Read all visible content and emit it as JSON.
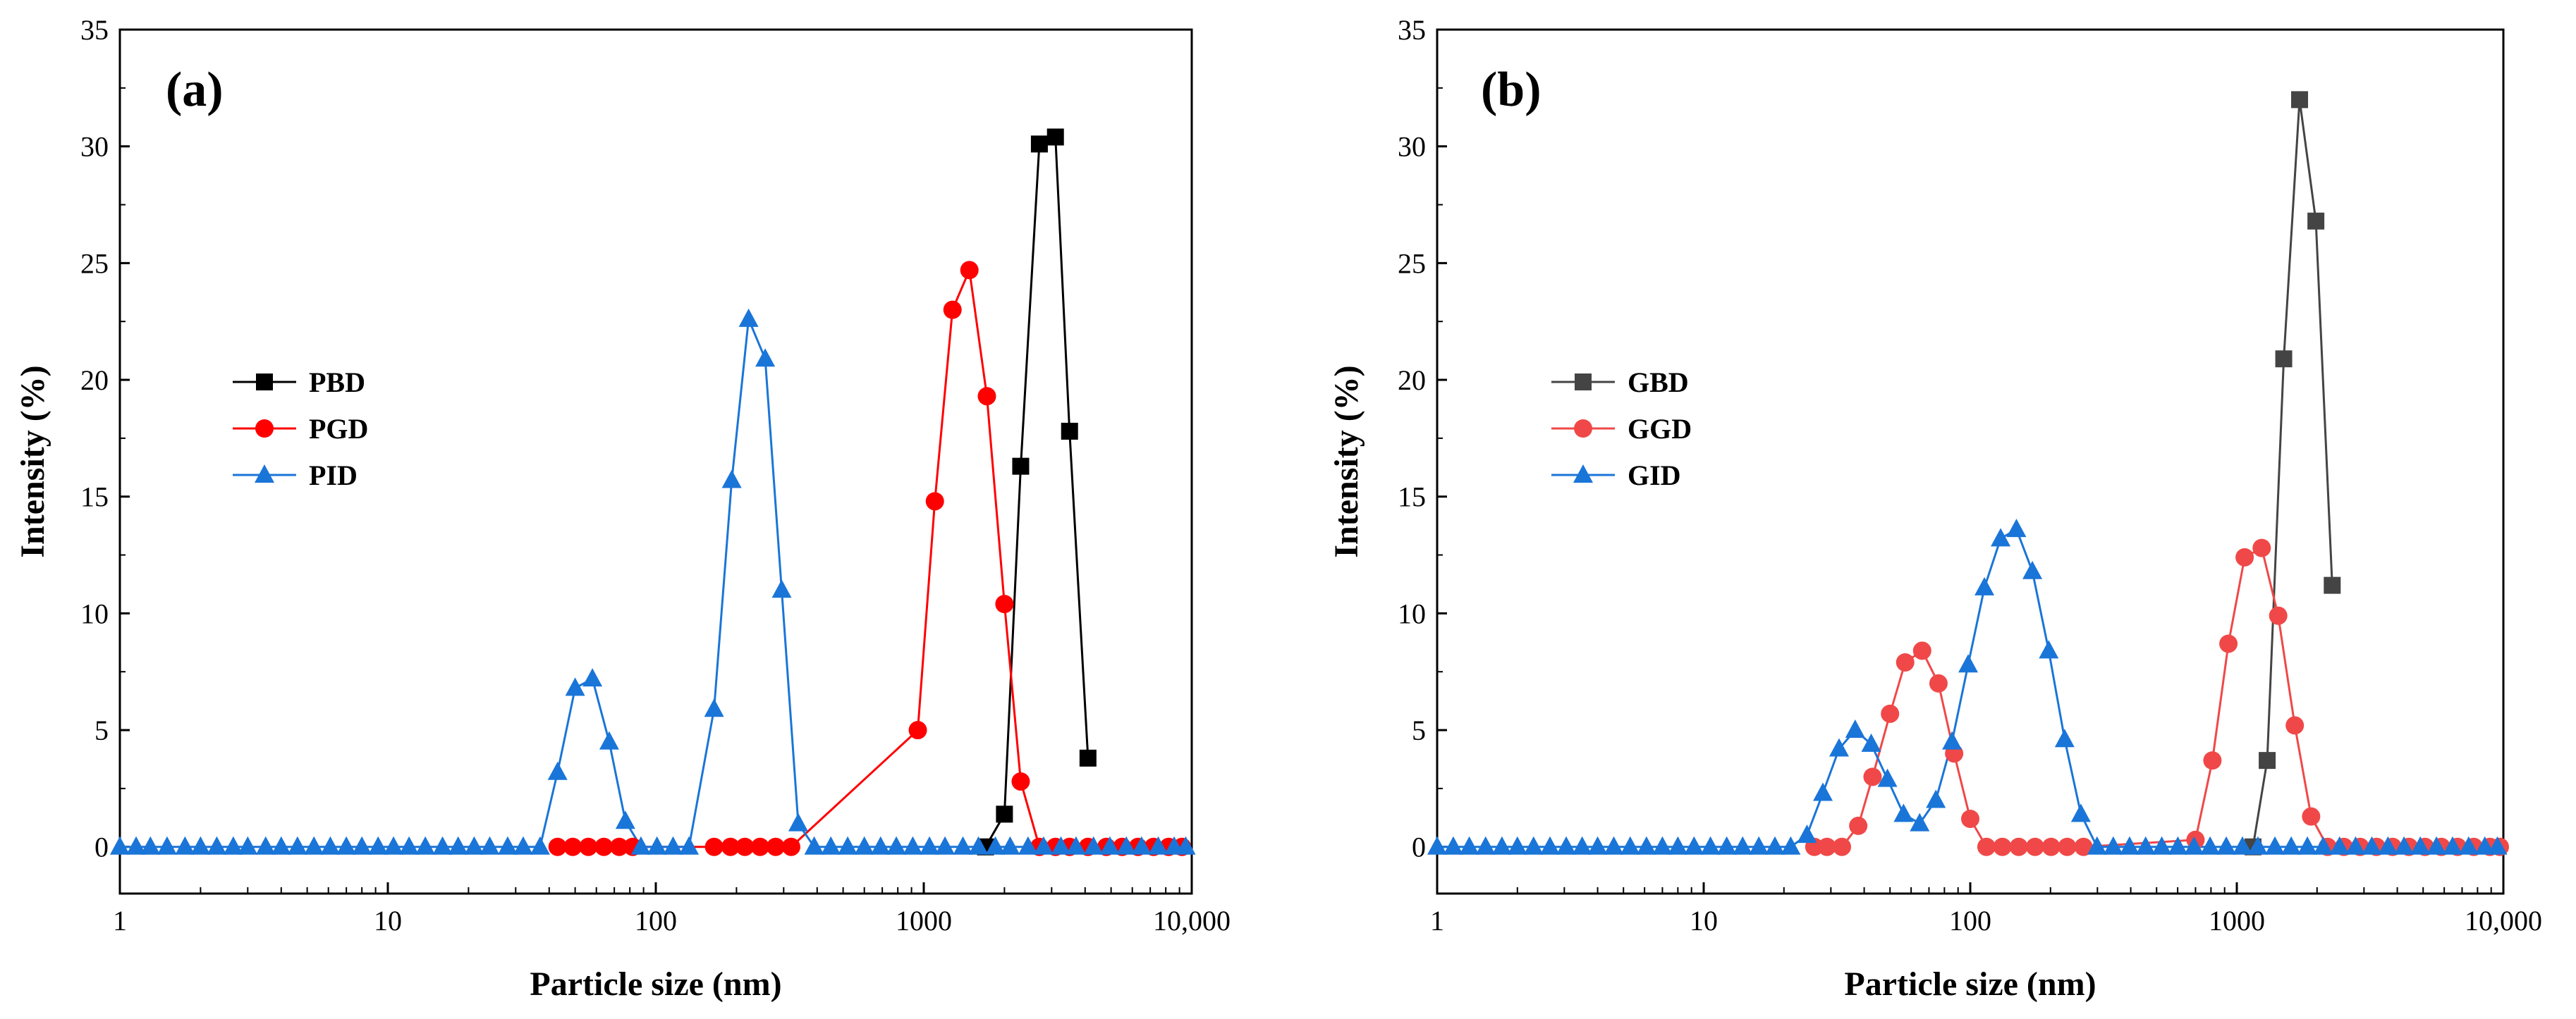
{
  "chart_data": [
    {
      "type": "line",
      "panel_label": "(a)",
      "xlabel": "Particle size (nm)",
      "ylabel": "Intensity (%)",
      "xscale": "log",
      "xlim": [
        1,
        10000
      ],
      "ylim": [
        -2,
        35
      ],
      "x_ticks": [
        1,
        10,
        100,
        1000,
        10000
      ],
      "x_tick_labels": [
        "1",
        "10",
        "100",
        "1000",
        "10,000"
      ],
      "y_ticks": [
        0,
        5,
        10,
        15,
        20,
        25,
        30,
        35
      ],
      "y_tick_labels": [
        "0",
        "5",
        "10",
        "15",
        "20",
        "25",
        "30",
        "35"
      ],
      "legend_position": "middle-left",
      "series": [
        {
          "name": "PBD",
          "color": "#000000",
          "marker": "square",
          "points": [
            [
              1700,
              0
            ],
            [
              2000,
              1.4
            ],
            [
              2300,
              16.3
            ],
            [
              2700,
              30.1
            ],
            [
              3100,
              30.4
            ],
            [
              3500,
              17.8
            ],
            [
              4100,
              3.8
            ]
          ]
        },
        {
          "name": "PGD",
          "color": "#ff0000",
          "marker": "circle",
          "points": [
            [
              43,
              0
            ],
            [
              49,
              0
            ],
            [
              56,
              0
            ],
            [
              64,
              0
            ],
            [
              73,
              0
            ],
            [
              82,
              0
            ],
            [
              165,
              0
            ],
            [
              190,
              0
            ],
            [
              215,
              0
            ],
            [
              245,
              0
            ],
            [
              280,
              0
            ],
            [
              320,
              0
            ],
            [
              950,
              5.0
            ],
            [
              1100,
              14.8
            ],
            [
              1280,
              23.0
            ],
            [
              1480,
              24.7
            ],
            [
              1720,
              19.3
            ],
            [
              2000,
              10.4
            ],
            [
              2300,
              2.8
            ],
            [
              2700,
              0
            ],
            [
              3100,
              0
            ],
            [
              3500,
              0
            ],
            [
              4100,
              0
            ],
            [
              4800,
              0
            ],
            [
              5500,
              0
            ],
            [
              6300,
              0
            ],
            [
              7200,
              0
            ],
            [
              8200,
              0
            ],
            [
              9200,
              0
            ]
          ]
        },
        {
          "name": "PID",
          "color": "#1a75d8",
          "marker": "triangle",
          "points": [
            [
              1,
              0
            ],
            [
              1.15,
              0
            ],
            [
              1.3,
              0
            ],
            [
              1.5,
              0
            ],
            [
              1.75,
              0
            ],
            [
              2,
              0
            ],
            [
              2.3,
              0
            ],
            [
              2.65,
              0
            ],
            [
              3,
              0
            ],
            [
              3.5,
              0
            ],
            [
              4,
              0
            ],
            [
              4.6,
              0
            ],
            [
              5.3,
              0
            ],
            [
              6.1,
              0
            ],
            [
              7,
              0
            ],
            [
              8,
              0
            ],
            [
              9.2,
              0
            ],
            [
              10.5,
              0
            ],
            [
              12,
              0
            ],
            [
              13.8,
              0
            ],
            [
              16,
              0
            ],
            [
              18.3,
              0
            ],
            [
              21,
              0
            ],
            [
              24,
              0
            ],
            [
              28,
              0
            ],
            [
              32,
              0
            ],
            [
              37,
              0
            ],
            [
              43,
              3.2
            ],
            [
              50,
              6.8
            ],
            [
              58,
              7.2
            ],
            [
              67,
              4.5
            ],
            [
              77,
              1.1
            ],
            [
              88,
              0
            ],
            [
              101,
              0
            ],
            [
              116,
              0
            ],
            [
              133,
              0
            ],
            [
              165,
              5.9
            ],
            [
              192,
              15.7
            ],
            [
              222,
              22.6
            ],
            [
              256,
              20.9
            ],
            [
              295,
              11.0
            ],
            [
              340,
              1.0
            ],
            [
              390,
              0
            ],
            [
              450,
              0
            ],
            [
              520,
              0
            ],
            [
              600,
              0
            ],
            [
              690,
              0
            ],
            [
              790,
              0
            ],
            [
              910,
              0
            ],
            [
              1050,
              0
            ],
            [
              1200,
              0
            ],
            [
              1400,
              0
            ],
            [
              1600,
              0
            ],
            [
              1850,
              0
            ],
            [
              2100,
              0
            ],
            [
              2450,
              0
            ],
            [
              2800,
              0
            ],
            [
              3250,
              0
            ],
            [
              3700,
              0
            ],
            [
              4300,
              0
            ],
            [
              4950,
              0
            ],
            [
              5700,
              0
            ],
            [
              6500,
              0
            ],
            [
              7500,
              0
            ],
            [
              8600,
              0
            ],
            [
              9500,
              0
            ]
          ]
        }
      ]
    },
    {
      "type": "line",
      "panel_label": "(b)",
      "xlabel": "Particle size (nm)",
      "ylabel": "Intensity (%)",
      "xscale": "log",
      "xlim": [
        1,
        10000
      ],
      "ylim": [
        -2,
        35
      ],
      "x_ticks": [
        1,
        10,
        100,
        1000,
        10000
      ],
      "x_tick_labels": [
        "1",
        "10",
        "100",
        "1000",
        "10,000"
      ],
      "y_ticks": [
        0,
        5,
        10,
        15,
        20,
        25,
        30,
        35
      ],
      "y_tick_labels": [
        "0",
        "5",
        "10",
        "15",
        "20",
        "25",
        "30",
        "35"
      ],
      "legend_position": "middle-left",
      "series": [
        {
          "name": "GBD",
          "color": "#444444",
          "marker": "square",
          "points": [
            [
              1150,
              0
            ],
            [
              1300,
              3.7
            ],
            [
              1500,
              20.9
            ],
            [
              1720,
              32.0
            ],
            [
              1980,
              26.8
            ],
            [
              2280,
              11.2
            ]
          ]
        },
        {
          "name": "GGD",
          "color": "#f04848",
          "marker": "circle",
          "points": [
            [
              26,
              0
            ],
            [
              29,
              0
            ],
            [
              33,
              0
            ],
            [
              38,
              0.9
            ],
            [
              43,
              3.0
            ],
            [
              50,
              5.7
            ],
            [
              57,
              7.9
            ],
            [
              66,
              8.4
            ],
            [
              76,
              7.0
            ],
            [
              87,
              4.0
            ],
            [
              100,
              1.2
            ],
            [
              115,
              0
            ],
            [
              132,
              0
            ],
            [
              152,
              0
            ],
            [
              175,
              0
            ],
            [
              201,
              0
            ],
            [
              231,
              0
            ],
            [
              266,
              0
            ],
            [
              700,
              0.3
            ],
            [
              810,
              3.7
            ],
            [
              930,
              8.7
            ],
            [
              1070,
              12.4
            ],
            [
              1240,
              12.8
            ],
            [
              1430,
              9.9
            ],
            [
              1650,
              5.2
            ],
            [
              1900,
              1.3
            ],
            [
              2190,
              0
            ],
            [
              2520,
              0
            ],
            [
              2900,
              0
            ],
            [
              3340,
              0
            ],
            [
              3840,
              0
            ],
            [
              4420,
              0
            ],
            [
              5080,
              0
            ],
            [
              5850,
              0
            ],
            [
              6730,
              0
            ],
            [
              7740,
              0
            ],
            [
              8900,
              0
            ],
            [
              9700,
              0
            ]
          ]
        },
        {
          "name": "GID",
          "color": "#1a75d8",
          "marker": "triangle",
          "points": [
            [
              1,
              0
            ],
            [
              1.15,
              0
            ],
            [
              1.32,
              0
            ],
            [
              1.52,
              0
            ],
            [
              1.75,
              0
            ],
            [
              2,
              0
            ],
            [
              2.3,
              0
            ],
            [
              2.65,
              0
            ],
            [
              3.05,
              0
            ],
            [
              3.5,
              0
            ],
            [
              4,
              0
            ],
            [
              4.6,
              0
            ],
            [
              5.3,
              0
            ],
            [
              6.1,
              0
            ],
            [
              7,
              0
            ],
            [
              8,
              0
            ],
            [
              9.2,
              0
            ],
            [
              10.6,
              0
            ],
            [
              12.2,
              0
            ],
            [
              14,
              0
            ],
            [
              16.1,
              0
            ],
            [
              18.5,
              0
            ],
            [
              21.2,
              0
            ],
            [
              24.4,
              0.5
            ],
            [
              28,
              2.3
            ],
            [
              32.2,
              4.2
            ],
            [
              37,
              5.0
            ],
            [
              42.5,
              4.4
            ],
            [
              48.9,
              2.9
            ],
            [
              56.2,
              1.4
            ],
            [
              64.6,
              1.0
            ],
            [
              74.3,
              2.0
            ],
            [
              85.4,
              4.5
            ],
            [
              98.2,
              7.8
            ],
            [
              113,
              11.1
            ],
            [
              130,
              13.2
            ],
            [
              149,
              13.6
            ],
            [
              171,
              11.8
            ],
            [
              197,
              8.4
            ],
            [
              226,
              4.6
            ],
            [
              260,
              1.4
            ],
            [
              299,
              0
            ],
            [
              344,
              0
            ],
            [
              396,
              0
            ],
            [
              455,
              0
            ],
            [
              523,
              0
            ],
            [
              601,
              0
            ],
            [
              691,
              0
            ],
            [
              794,
              0
            ],
            [
              913,
              0
            ],
            [
              1050,
              0
            ],
            [
              1200,
              0
            ],
            [
              1390,
              0
            ],
            [
              1600,
              0
            ],
            [
              1840,
              0
            ],
            [
              2110,
              0
            ],
            [
              2430,
              0
            ],
            [
              2790,
              0
            ],
            [
              3210,
              0
            ],
            [
              3690,
              0
            ],
            [
              4240,
              0
            ],
            [
              4880,
              0
            ],
            [
              5610,
              0
            ],
            [
              6450,
              0
            ],
            [
              7410,
              0
            ],
            [
              8520,
              0
            ],
            [
              9500,
              0
            ]
          ]
        }
      ]
    }
  ]
}
